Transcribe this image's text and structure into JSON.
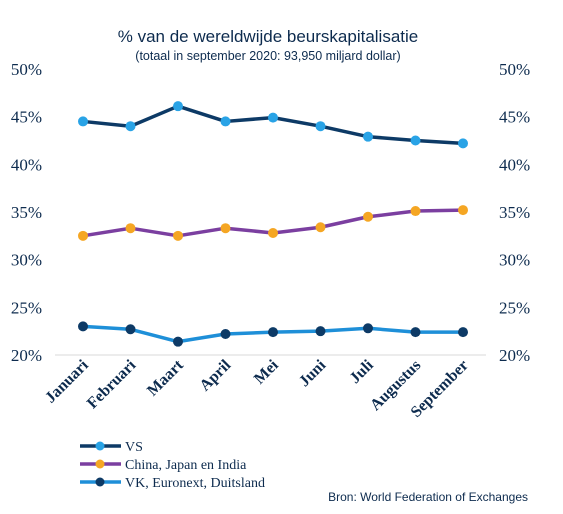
{
  "chart_data": {
    "type": "line",
    "title": "% van de wereldwijde beurskapitalisatie",
    "subtitle": "(totaal in september 2020: 93,950 miljard dollar)",
    "categories": [
      "Januari",
      "Februari",
      "Maart",
      "April",
      "Mei",
      "Juni",
      "Juli",
      "Augustus",
      "September"
    ],
    "ylim": [
      20,
      50
    ],
    "yticks": [
      "50%",
      "45%",
      "40%",
      "35%",
      "30%",
      "25%",
      "20%"
    ],
    "ytick_values": [
      50,
      45,
      40,
      35,
      30,
      25,
      20
    ],
    "series": [
      {
        "name": "VS",
        "line_color": "#0d3a66",
        "marker_color": "#29a3e6",
        "values": [
          44.5,
          44.0,
          46.1,
          44.5,
          44.9,
          44.0,
          42.9,
          42.5,
          42.2
        ]
      },
      {
        "name": "China, Japan en India",
        "line_color": "#7b3fa0",
        "marker_color": "#f5a623",
        "values": [
          32.5,
          33.3,
          32.5,
          33.3,
          32.8,
          33.4,
          34.5,
          35.1,
          35.2
        ]
      },
      {
        "name": "VK, Euronext, Duitsland",
        "line_color": "#1e8fd8",
        "marker_color": "#0d3a66",
        "values": [
          23.0,
          22.7,
          21.4,
          22.2,
          22.4,
          22.5,
          22.8,
          22.4,
          22.4
        ]
      }
    ],
    "grid": false,
    "legend_position": "bottom-left",
    "source": "Bron: World Federation of Exchanges"
  }
}
